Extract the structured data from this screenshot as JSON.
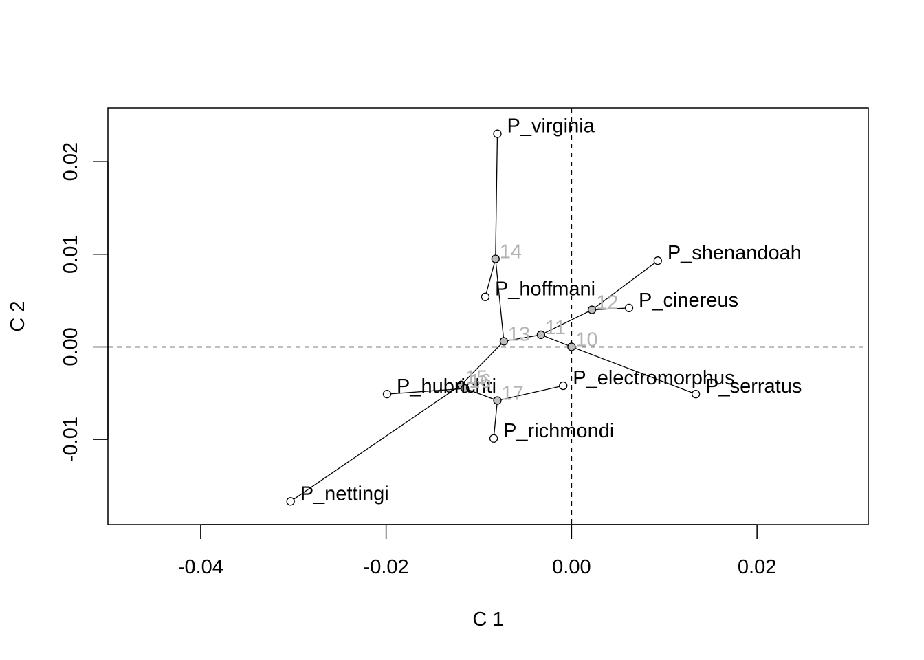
{
  "chart_data": {
    "type": "scatter",
    "subtype": "phylomorphospace",
    "xlabel": "C 1",
    "ylabel": "C 2",
    "xlim": [
      -0.05,
      0.032
    ],
    "ylim": [
      -0.0192,
      0.0258
    ],
    "xticks": [
      {
        "value": -0.04,
        "label": "-0.04"
      },
      {
        "value": -0.02,
        "label": "-0.02"
      },
      {
        "value": 0.0,
        "label": "0.00"
      },
      {
        "value": 0.02,
        "label": "0.02"
      }
    ],
    "yticks": [
      {
        "value": -0.01,
        "label": "-0.01"
      },
      {
        "value": 0.0,
        "label": "0.00"
      },
      {
        "value": 0.01,
        "label": "0.01"
      },
      {
        "value": 0.02,
        "label": "0.02"
      }
    ],
    "reference_lines": {
      "x": 0.0,
      "y": 0.0,
      "style": "dashed"
    },
    "tips": [
      {
        "id": "P_virginia",
        "label": "P_virginia",
        "x": -0.008,
        "y": 0.023
      },
      {
        "id": "P_shenandoah",
        "label": "P_shenandoah",
        "x": 0.0093,
        "y": 0.0093
      },
      {
        "id": "P_hoffmani",
        "label": "P_hoffmani",
        "x": -0.0093,
        "y": 0.0054
      },
      {
        "id": "P_cinereus",
        "label": "P_cinereus",
        "x": 0.0062,
        "y": 0.0042
      },
      {
        "id": "P_electromorphus",
        "label": "P_electromorphus",
        "x": -0.0009,
        "y": -0.0042
      },
      {
        "id": "P_serratus",
        "label": "P_serratus",
        "x": 0.0134,
        "y": -0.0051
      },
      {
        "id": "P_hubrichti",
        "label": "P_hubrichti",
        "x": -0.0199,
        "y": -0.0051
      },
      {
        "id": "P_richmondi",
        "label": "P_richmondi",
        "x": -0.0084,
        "y": -0.0099
      },
      {
        "id": "P_nettingi",
        "label": "P_nettingi",
        "x": -0.0303,
        "y": -0.0167
      }
    ],
    "nodes": [
      {
        "id": "10",
        "label": "10",
        "x": 0.0,
        "y": 0.0
      },
      {
        "id": "11",
        "label": "11",
        "x": -0.0033,
        "y": 0.0013
      },
      {
        "id": "12",
        "label": "12",
        "x": 0.0022,
        "y": 0.004
      },
      {
        "id": "13",
        "label": "13",
        "x": -0.0073,
        "y": 0.0006
      },
      {
        "id": "14",
        "label": "14",
        "x": -0.0082,
        "y": 0.0095
      },
      {
        "id": "15",
        "label": "15",
        "x": -0.0119,
        "y": -0.0041
      },
      {
        "id": "16",
        "label": "16",
        "x": -0.0115,
        "y": -0.0045
      },
      {
        "id": "17",
        "label": "17",
        "x": -0.008,
        "y": -0.0058
      }
    ],
    "edges": [
      [
        "10",
        "11"
      ],
      [
        "10",
        "P_serratus"
      ],
      [
        "11",
        "12"
      ],
      [
        "11",
        "13"
      ],
      [
        "12",
        "P_shenandoah"
      ],
      [
        "12",
        "P_cinereus"
      ],
      [
        "13",
        "14"
      ],
      [
        "13",
        "15"
      ],
      [
        "14",
        "P_virginia"
      ],
      [
        "14",
        "P_hoffmani"
      ],
      [
        "15",
        "16"
      ],
      [
        "15",
        "P_nettingi"
      ],
      [
        "16",
        "P_hubrichti"
      ],
      [
        "16",
        "17"
      ],
      [
        "17",
        "P_electromorphus"
      ],
      [
        "17",
        "P_richmondi"
      ]
    ],
    "colors": {
      "tip_fill": "#ffffff",
      "node_fill": "#bebebe",
      "node_label": "#b3b3b3",
      "line": "#000000"
    }
  }
}
